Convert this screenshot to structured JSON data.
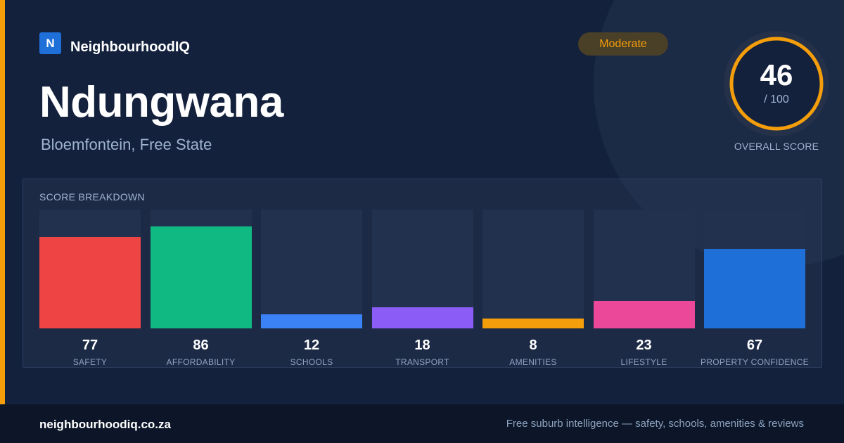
{
  "brand": {
    "logo_letter": "N",
    "name": "NeighbourhoodIQ"
  },
  "suburb": {
    "name": "Ndungwana",
    "location": "Bloemfontein, Free State"
  },
  "rating": {
    "label": "Moderate",
    "color": "#f59e0b"
  },
  "overall": {
    "value": "46",
    "max": "/ 100",
    "label": "OVERALL SCORE",
    "fraction": 0.46
  },
  "breakdown": {
    "title": "SCORE BREAKDOWN",
    "categories": [
      {
        "label": "SAFETY",
        "value": "77",
        "score": 77,
        "color": "#ef4444"
      },
      {
        "label": "AFFORDABILITY",
        "value": "86",
        "score": 86,
        "color": "#10b981"
      },
      {
        "label": "SCHOOLS",
        "value": "12",
        "score": 12,
        "color": "#3b82f6"
      },
      {
        "label": "TRANSPORT",
        "value": "18",
        "score": 18,
        "color": "#8b5cf6"
      },
      {
        "label": "AMENITIES",
        "value": "8",
        "score": 8,
        "color": "#f59e0b"
      },
      {
        "label": "LIFESTYLE",
        "value": "23",
        "score": 23,
        "color": "#ec4899"
      },
      {
        "label": "PROPERTY CONFIDENCE",
        "value": "67",
        "score": 67,
        "color": "#1f6fd9"
      }
    ]
  },
  "footer": {
    "url": "neighbourhoodiq.co.za",
    "tagline": "Free suburb intelligence — safety, schools, amenities & reviews"
  }
}
